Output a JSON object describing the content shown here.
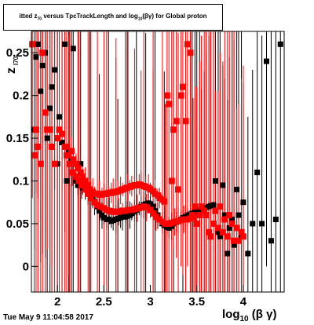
{
  "title": "itted  z  versus TpcTrackLength and log  (βγ) for Global proton",
  "title_parts": {
    "pre": "itted  z",
    "sub1": "70",
    "mid": " versus TpcTrackLength and log",
    "sub2": "10",
    "post": "(βγ) for Global proton"
  },
  "ylabel": {
    "main": "z",
    "sub": "I70"
  },
  "xlabel": {
    "main": "log",
    "sub": "10",
    "post": " (β γ)"
  },
  "timestamp": "Tue May  9 11:04:58 2017",
  "colors": {
    "series_black": "#000000",
    "series_red": "#ff0000",
    "axis": "#000000",
    "background": "#ffffff"
  },
  "chart_data": {
    "type": "scatter",
    "title": "itted z70 versus TpcTrackLength and log10(βγ) for Global proton",
    "xlabel": "log10 (β γ)",
    "ylabel": "z I70",
    "xlim": [
      1.72,
      4.44
    ],
    "ylim": [
      -0.03,
      0.275
    ],
    "xticks": [
      2,
      2.5,
      3,
      3.5,
      4
    ],
    "xtick_labels": [
      "2",
      "2.5",
      "3",
      "3.5",
      "4"
    ],
    "yticks": [
      0,
      0.05,
      0.1,
      0.15,
      0.2,
      0.25
    ],
    "ytick_labels": [
      "0",
      "0.05",
      "0.1",
      "0.15",
      "0.2",
      "0.25"
    ],
    "grid": false,
    "legend": "none",
    "series": [
      {
        "marker": "square",
        "color": "#000000",
        "x": [
          1.75,
          1.77,
          1.79,
          1.82,
          1.84,
          1.87,
          1.89,
          1.92,
          1.94,
          1.97,
          2.0,
          2.02,
          2.05,
          2.08,
          2.1,
          2.12,
          2.15,
          2.17,
          2.2,
          2.22,
          2.25,
          2.27,
          2.3,
          2.33,
          2.35,
          2.38,
          2.4,
          2.43,
          2.45,
          2.48,
          2.5,
          2.53,
          2.55,
          2.58,
          2.6,
          2.63,
          2.65,
          2.68,
          2.7,
          2.73,
          2.75,
          2.78,
          2.8,
          2.83,
          2.85,
          2.88,
          2.9,
          2.93,
          2.95,
          2.98,
          3.0,
          3.03,
          3.05,
          3.08,
          3.1,
          3.13,
          3.15,
          3.18,
          3.2,
          3.23,
          3.25,
          3.28,
          3.3,
          3.33,
          3.35,
          3.38,
          3.4,
          3.43,
          3.45,
          3.48,
          3.5,
          3.53,
          3.55,
          3.58,
          3.6,
          3.63,
          3.65,
          3.68,
          3.7,
          3.73,
          3.75,
          3.78,
          3.8,
          3.83,
          3.85,
          3.88,
          3.9,
          3.93,
          3.95,
          3.98,
          4.0,
          4.05,
          4.1,
          4.15,
          4.2,
          4.25,
          4.3,
          4.35,
          4.4
        ],
        "y": [
          0.16,
          0.245,
          0.26,
          0.205,
          0.235,
          0.25,
          0.15,
          0.185,
          0.21,
          0.23,
          0.12,
          0.175,
          0.145,
          0.26,
          0.1,
          0.135,
          0.125,
          0.255,
          0.1,
          0.095,
          0.12,
          0.092,
          0.09,
          0.088,
          0.085,
          0.08,
          0.076,
          0.07,
          0.065,
          0.06,
          0.057,
          0.055,
          0.055,
          0.053,
          0.054,
          0.055,
          0.056,
          0.057,
          0.058,
          0.058,
          0.059,
          0.06,
          0.062,
          0.064,
          0.066,
          0.068,
          0.07,
          0.072,
          0.073,
          0.074,
          0.073,
          0.07,
          0.065,
          0.06,
          0.055,
          0.05,
          0.048,
          0.046,
          0.045,
          0.047,
          0.05,
          0.052,
          0.053,
          0.055,
          0.057,
          0.058,
          0.06,
          0.061,
          0.062,
          0.064,
          0.065,
          0.066,
          0.067,
          0.068,
          0.069,
          0.07,
          0.071,
          0.072,
          0.1,
          0.04,
          0.035,
          0.095,
          0.06,
          0.015,
          0.045,
          0.055,
          0.025,
          0.09,
          0.06,
          0.035,
          0.075,
          0.015,
          0.05,
          0.11,
          0.05,
          0.24,
          0.03,
          0.055,
          0.26
        ]
      },
      {
        "marker": "square",
        "color": "#ff0000",
        "x": [
          1.73,
          1.75,
          1.77,
          1.79,
          1.82,
          1.84,
          1.87,
          1.89,
          1.92,
          1.94,
          1.97,
          2.0,
          2.02,
          2.05,
          2.08,
          2.1,
          2.12,
          2.15,
          2.17,
          2.2,
          2.22,
          2.25,
          2.27,
          2.3,
          2.33,
          2.35,
          2.38,
          2.4,
          2.43,
          2.45,
          2.48,
          2.5,
          2.53,
          2.55,
          2.58,
          2.6,
          2.63,
          2.65,
          2.68,
          2.7,
          2.73,
          2.75,
          2.78,
          2.8,
          2.83,
          2.85,
          2.88,
          2.9,
          2.93,
          2.95,
          2.98,
          3.0,
          3.03,
          3.05,
          3.08,
          3.1,
          3.13,
          3.15,
          3.18,
          3.2,
          3.23,
          3.25,
          3.28,
          3.3,
          3.33,
          3.35,
          3.38,
          3.4,
          3.43,
          3.45,
          3.48,
          3.5,
          3.53,
          3.55,
          3.58,
          3.6,
          3.63,
          3.65,
          3.68,
          3.7,
          3.73,
          3.75,
          3.78,
          3.8,
          3.83,
          3.85,
          3.88,
          3.9,
          3.93,
          3.95,
          3.98,
          4.0
        ],
        "y": [
          0.26,
          0.13,
          0.16,
          0.14,
          0.12,
          0.25,
          0.18,
          0.16,
          0.16,
          0.14,
          0.12,
          0.15,
          0.16,
          0.155,
          0.14,
          0.14,
          0.13,
          0.135,
          0.125,
          0.12,
          0.115,
          0.11,
          0.105,
          0.1,
          0.095,
          0.09,
          0.087,
          0.085,
          0.085,
          0.084,
          0.084,
          0.085,
          0.085,
          0.086,
          0.086,
          0.087,
          0.087,
          0.088,
          0.089,
          0.09,
          0.091,
          0.092,
          0.093,
          0.094,
          0.095,
          0.095,
          0.096,
          0.095,
          0.094,
          0.093,
          0.092,
          0.09,
          0.088,
          0.085,
          0.083,
          0.08,
          0.078,
          0.076,
          0.2,
          0.19,
          0.1,
          0.16,
          0.17,
          0.09,
          0.2,
          0.21,
          0.17,
          0.26,
          0.25,
          0.06,
          0.07,
          0.05,
          0.06,
          0.07,
          0.065,
          0.06,
          0.04,
          0.035,
          0.05,
          0.065,
          0.045,
          0.07,
          0.04,
          0.055,
          0.035,
          0.06,
          0.05,
          0.03,
          0.045,
          0.03,
          0.04,
          0.035
        ]
      },
      {
        "marker": "square",
        "color": "#ff0000",
        "x": [
          2.1,
          2.13,
          2.16,
          2.2,
          2.23,
          2.26,
          2.3,
          2.33,
          2.36,
          2.4,
          2.43,
          2.46,
          2.5,
          2.53,
          2.56,
          2.6,
          2.63,
          2.66,
          2.7,
          2.73,
          2.76,
          2.8,
          2.83,
          2.86,
          2.9,
          2.93,
          2.96,
          3.0,
          3.03,
          3.06,
          3.1,
          3.13,
          3.16,
          3.2,
          3.23,
          3.26,
          3.3,
          3.33,
          3.36,
          3.4,
          3.43,
          3.46
        ],
        "y": [
          0.13,
          0.12,
          0.11,
          0.105,
          0.1,
          0.095,
          0.09,
          0.085,
          0.08,
          0.075,
          0.072,
          0.07,
          0.068,
          0.066,
          0.065,
          0.064,
          0.064,
          0.064,
          0.065,
          0.065,
          0.066,
          0.066,
          0.067,
          0.068,
          0.069,
          0.07,
          0.069,
          0.066,
          0.062,
          0.058,
          0.055,
          0.052,
          0.05,
          0.05,
          0.051,
          0.052,
          0.053,
          0.054,
          0.055,
          0.055,
          0.056,
          0.057
        ]
      }
    ]
  }
}
